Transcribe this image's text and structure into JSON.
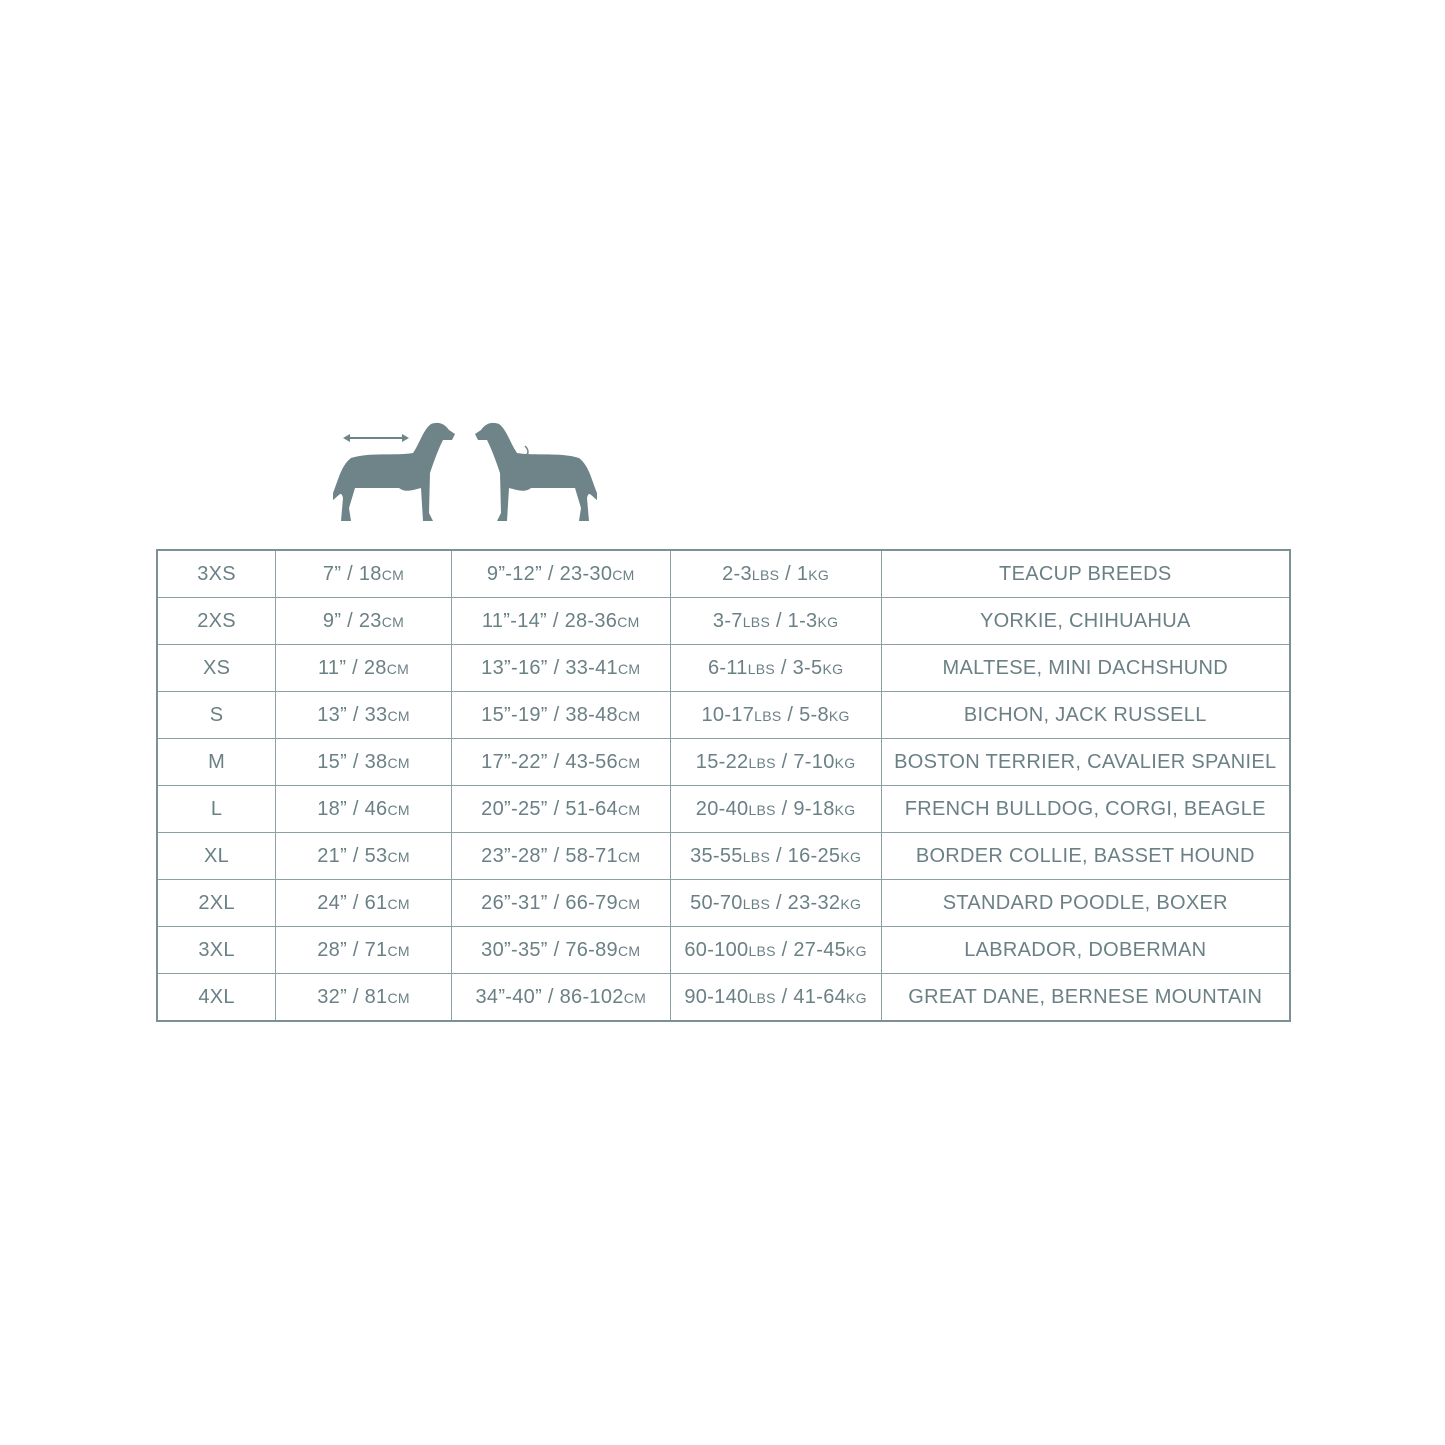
{
  "colors": {
    "text": "#6b8085",
    "border": "#8fa0a4",
    "icon": "#6e8489"
  },
  "icons": [
    "dog-length-measure-icon",
    "dog-neck-chest-measure-icon"
  ],
  "rows": [
    {
      "size": "3XS",
      "length": [
        "7” / 18",
        "CM"
      ],
      "girth": [
        "9”-12” / 23-30",
        "CM"
      ],
      "weight": [
        "2-3",
        "LBS",
        " / 1",
        "KG"
      ],
      "breeds": "TEACUP BREEDS"
    },
    {
      "size": "2XS",
      "length": [
        "9” / 23",
        "CM"
      ],
      "girth": [
        "11”-14” / 28-36",
        "CM"
      ],
      "weight": [
        "3-7",
        "LBS",
        " / 1-3",
        "KG"
      ],
      "breeds": "YORKIE, CHIHUAHUA"
    },
    {
      "size": "XS",
      "length": [
        "11” / 28",
        "CM"
      ],
      "girth": [
        "13”-16” / 33-41",
        "CM"
      ],
      "weight": [
        "6-11",
        "LBS",
        " / 3-5",
        "KG"
      ],
      "breeds": "MALTESE, MINI DACHSHUND"
    },
    {
      "size": "S",
      "length": [
        "13” / 33",
        "CM"
      ],
      "girth": [
        "15”-19” / 38-48",
        "CM"
      ],
      "weight": [
        "10-17",
        "LBS",
        " / 5-8",
        "KG"
      ],
      "breeds": "BICHON, JACK RUSSELL"
    },
    {
      "size": "M",
      "length": [
        "15” / 38",
        "CM"
      ],
      "girth": [
        "17”-22” / 43-56",
        "CM"
      ],
      "weight": [
        "15-22",
        "LBS",
        " / 7-10",
        "KG"
      ],
      "breeds": "BOSTON TERRIER, CAVALIER SPANIEL"
    },
    {
      "size": "L",
      "length": [
        "18” / 46",
        "CM"
      ],
      "girth": [
        "20”-25” / 51-64",
        "CM"
      ],
      "weight": [
        "20-40",
        "LBS",
        " / 9-18",
        "KG"
      ],
      "breeds": "FRENCH BULLDOG, CORGI, BEAGLE"
    },
    {
      "size": "XL",
      "length": [
        "21” / 53",
        "CM"
      ],
      "girth": [
        "23”-28” / 58-71",
        "CM"
      ],
      "weight": [
        "35-55",
        "LBS",
        " / 16-25",
        "KG"
      ],
      "breeds": "BORDER COLLIE, BASSET HOUND"
    },
    {
      "size": "2XL",
      "length": [
        "24” / 61",
        "CM"
      ],
      "girth": [
        "26”-31” / 66-79",
        "CM"
      ],
      "weight": [
        "50-70",
        "LBS",
        " / 23-32",
        "KG"
      ],
      "breeds": "STANDARD POODLE, BOXER"
    },
    {
      "size": "3XL",
      "length": [
        "28” / 71",
        "CM"
      ],
      "girth": [
        "30”-35” / 76-89",
        "CM"
      ],
      "weight": [
        "60-100",
        "LBS",
        " / 27-45",
        "KG"
      ],
      "breeds": "LABRADOR, DOBERMAN"
    },
    {
      "size": "4XL",
      "length": [
        "32” / 81",
        "CM"
      ],
      "girth": [
        "34”-40” / 86-102",
        "CM"
      ],
      "weight": [
        "90-140",
        "LBS",
        " / 41-64",
        "KG"
      ],
      "breeds": "GREAT DANE, BERNESE MOUNTAIN"
    }
  ]
}
